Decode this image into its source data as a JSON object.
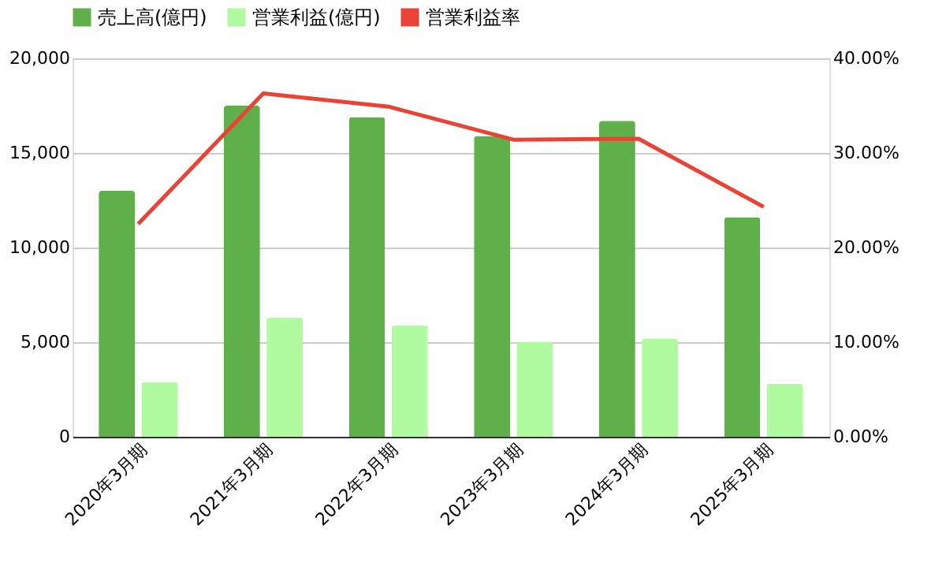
{
  "chart_data": {
    "type": "bar",
    "categories": [
      "2020年3月期",
      "2021年3月期",
      "2022年3月期",
      "2023年3月期",
      "2024年3月期",
      "2025年3月期"
    ],
    "series": [
      {
        "name": "売上高(億円)",
        "color": "#5fb04b",
        "values": [
          13000,
          17500,
          16900,
          15900,
          16700,
          11600
        ]
      },
      {
        "name": "営業利益(億円)",
        "color": "#b0fba0",
        "values": [
          2900,
          6300,
          5900,
          5000,
          5200,
          2800
        ]
      },
      {
        "name": "営業利益率",
        "color": "#ea4335",
        "type": "line",
        "axis": "y2",
        "values": [
          22.5,
          36.3,
          34.9,
          31.4,
          31.5,
          24.3
        ]
      }
    ],
    "ylim": [
      0,
      20000
    ],
    "yticks": [
      {
        "value": 0,
        "label": "0"
      },
      {
        "value": 5000,
        "label": "5,000"
      },
      {
        "value": 10000,
        "label": "10,000"
      },
      {
        "value": 15000,
        "label": "15,000"
      },
      {
        "value": 20000,
        "label": "20,000"
      }
    ],
    "y2lim": [
      0,
      40
    ],
    "y2ticks": [
      {
        "value": 0,
        "label": "0.00%"
      },
      {
        "value": 10,
        "label": "10.00%"
      },
      {
        "value": 20,
        "label": "20.00%"
      },
      {
        "value": 30,
        "label": "30.00%"
      },
      {
        "value": 40,
        "label": "40.00%"
      }
    ],
    "grid": "y",
    "legend": "top"
  }
}
